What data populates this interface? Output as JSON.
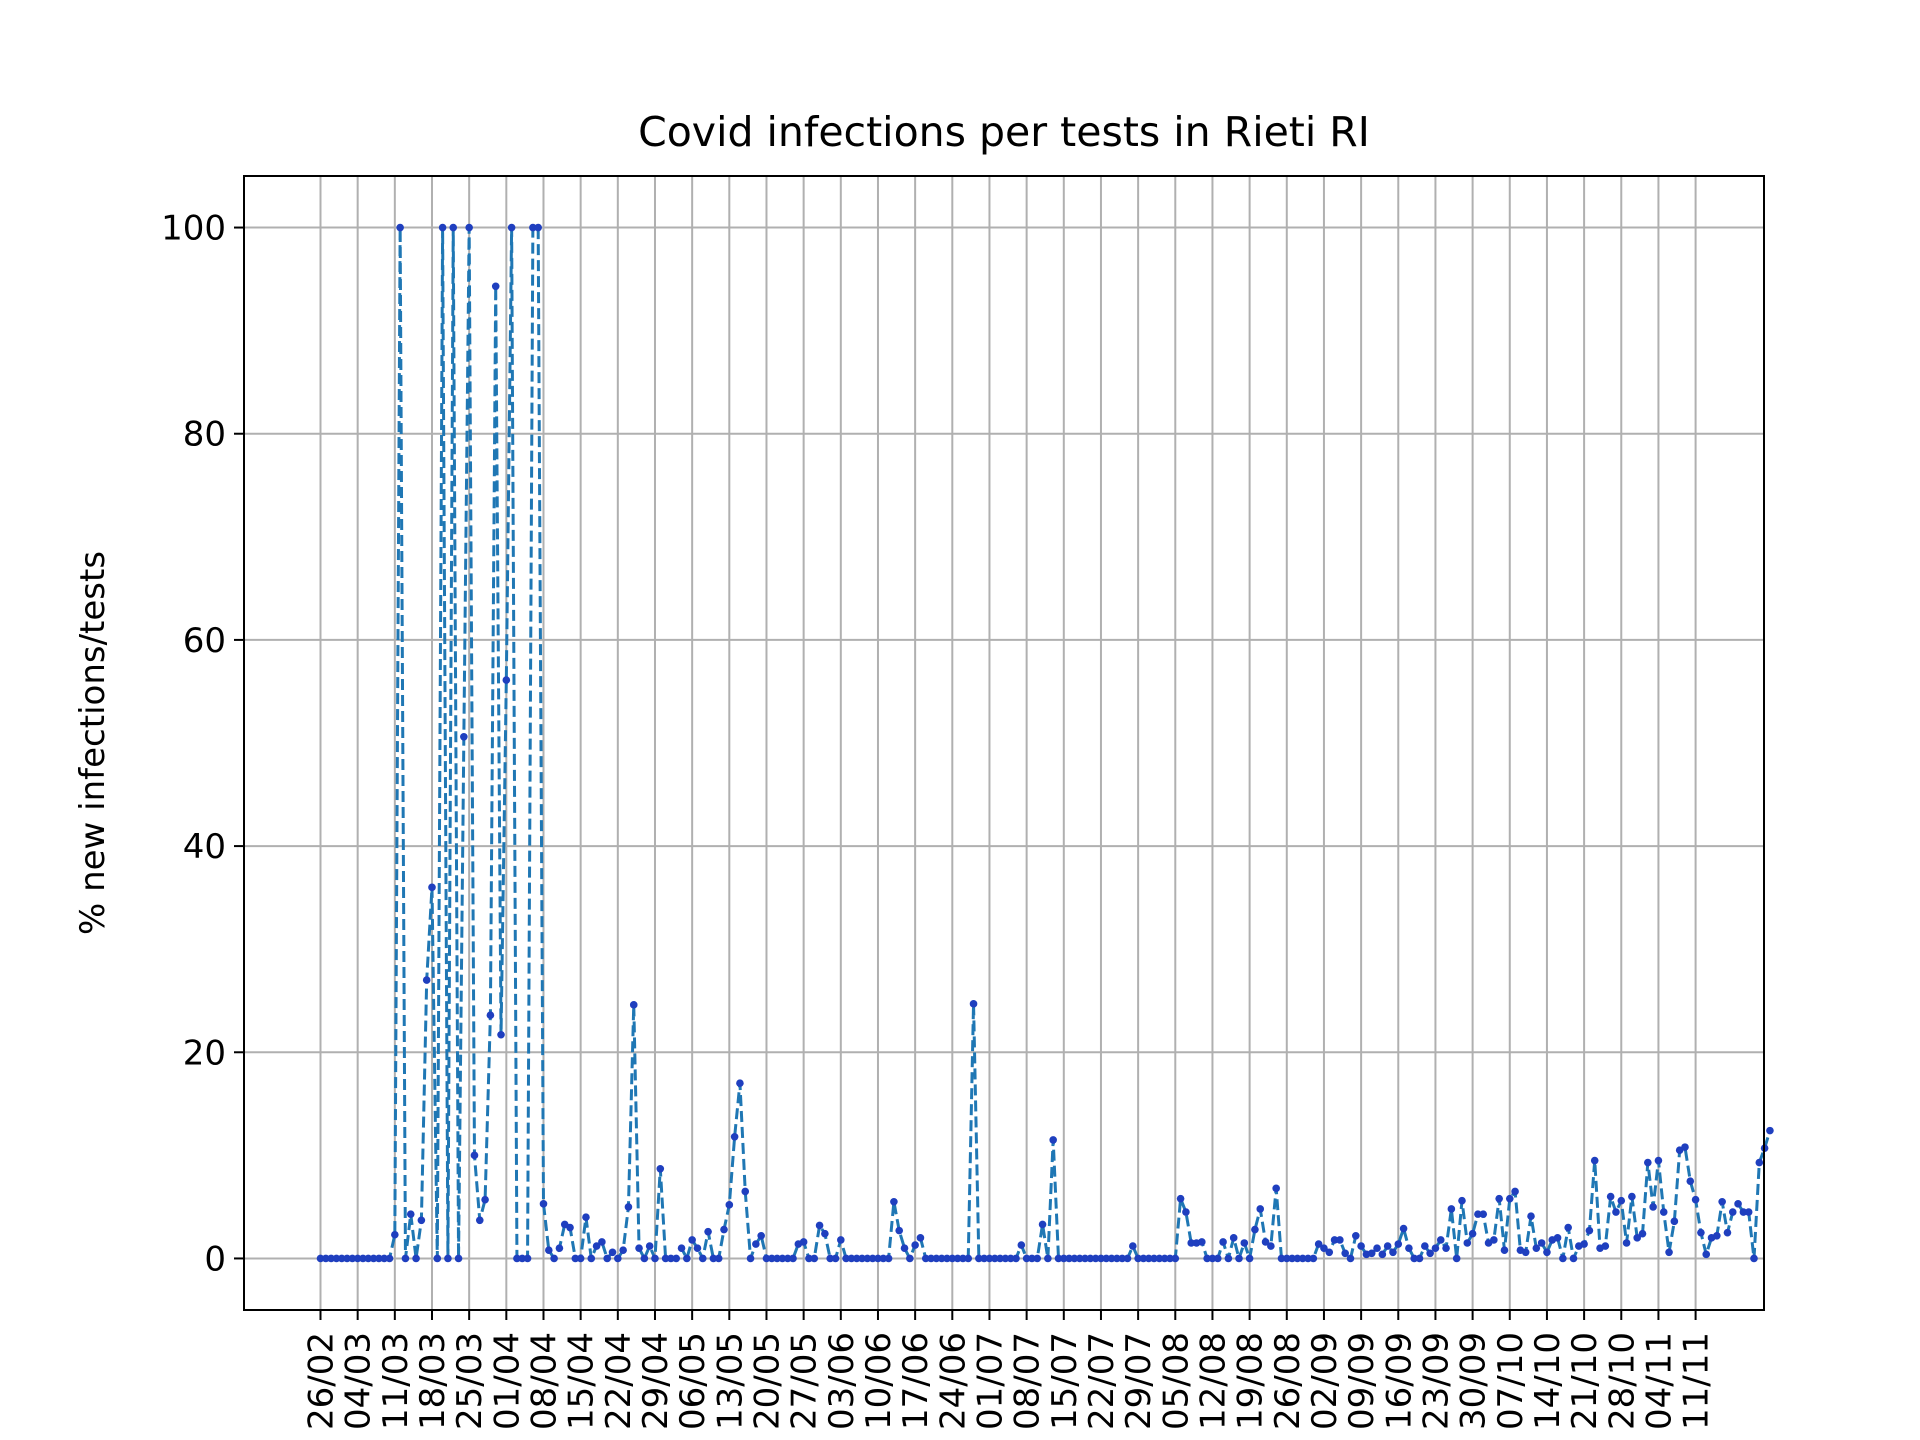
{
  "chart_data": {
    "type": "line",
    "title": "Covid infections per tests in Rieti RI",
    "xlabel": "",
    "ylabel": "% new infections/tests",
    "ylim": [
      -5,
      105
    ],
    "yticks": [
      0,
      20,
      40,
      60,
      80,
      100
    ],
    "grid": true,
    "line_style": "dashed",
    "marker": "dot",
    "colors": {
      "line": "#1f77b4",
      "marker": "#1f3fbf"
    },
    "x_start": "26/02",
    "x_tick_labels": [
      "26/02",
      "04/03",
      "11/03",
      "18/03",
      "25/03",
      "01/04",
      "08/04",
      "15/04",
      "22/04",
      "29/04",
      "06/05",
      "13/05",
      "20/05",
      "27/05",
      "03/06",
      "10/06",
      "17/06",
      "24/06",
      "01/07",
      "08/07",
      "15/07",
      "22/07",
      "29/07",
      "05/08",
      "12/08",
      "19/08",
      "26/08",
      "02/09",
      "09/09",
      "16/09",
      "23/09",
      "30/09",
      "07/10",
      "14/10",
      "21/10",
      "28/10",
      "04/11",
      "11/11"
    ],
    "series": [
      {
        "values": [
          0,
          0,
          0,
          0,
          0,
          0,
          0,
          0,
          0,
          0,
          0,
          0,
          0,
          0,
          2.3,
          100,
          0,
          4.3,
          0,
          3.7,
          27,
          36,
          0,
          100,
          0,
          100,
          0,
          50.6,
          100,
          10,
          3.7,
          5.7,
          23.6,
          94.3,
          21.7,
          56.1,
          100,
          0,
          0,
          0,
          100,
          100,
          5.3,
          0.8,
          0,
          1,
          3.3,
          3,
          0,
          0,
          4,
          0,
          1.2,
          1.6,
          0,
          0.6,
          0,
          0.8,
          5,
          24.6,
          1,
          0,
          1.2,
          0,
          8.7,
          0,
          0,
          0,
          1,
          0,
          1.8,
          1,
          0,
          2.6,
          0,
          0,
          2.8,
          5.2,
          11.8,
          17,
          6.5,
          0,
          1.4,
          2.2,
          0,
          0,
          0,
          0,
          0,
          0,
          1.4,
          1.6,
          0,
          0,
          3.2,
          2.4,
          0,
          0,
          1.8,
          0,
          0,
          0,
          0,
          0,
          0,
          0,
          0,
          0,
          5.5,
          2.7,
          1,
          0,
          1.3,
          2,
          0,
          0,
          0,
          0,
          0,
          0,
          0,
          0,
          0,
          24.7,
          0,
          0,
          0,
          0,
          0,
          0,
          0,
          0,
          1.3,
          0,
          0,
          0,
          3.3,
          0,
          11.5,
          0,
          0,
          0,
          0,
          0,
          0,
          0,
          0,
          0,
          0,
          0,
          0,
          0,
          0,
          1.2,
          0,
          0,
          0,
          0,
          0,
          0,
          0,
          0,
          5.8,
          4.5,
          1.5,
          1.5,
          1.6,
          0,
          0,
          0,
          1.6,
          0,
          2,
          0,
          1.5,
          0,
          2.8,
          4.8,
          1.6,
          1.2,
          6.8,
          0,
          0,
          0,
          0,
          0,
          0,
          0,
          1.4,
          1,
          0.6,
          1.8,
          1.8,
          0.5,
          0,
          2.2,
          1.2,
          0.4,
          0.5,
          1,
          0.4,
          1.2,
          0.6,
          1.4,
          2.9,
          1,
          0,
          0,
          1.2,
          0.5,
          1,
          1.8,
          1,
          4.8,
          0,
          5.6,
          1.5,
          2.4,
          4.3,
          4.3,
          1.5,
          1.8,
          5.8,
          0.8,
          5.8,
          6.5,
          0.8,
          0.6,
          4.1,
          1,
          1.5,
          0.6,
          1.8,
          2,
          0,
          3,
          0,
          1.2,
          1.4,
          2.7,
          9.5,
          1,
          1.2,
          6,
          4.5,
          5.6,
          1.5,
          6,
          2,
          2.4,
          9.3,
          5,
          9.5,
          4.5,
          0.6,
          3.6,
          10.5,
          10.8,
          7.5,
          5.7,
          2.5,
          0.4,
          2,
          2.2,
          5.5,
          2.5,
          4.5,
          5.3,
          4.5,
          4.5,
          0,
          9.3,
          10.7,
          12.4
        ]
      }
    ]
  }
}
